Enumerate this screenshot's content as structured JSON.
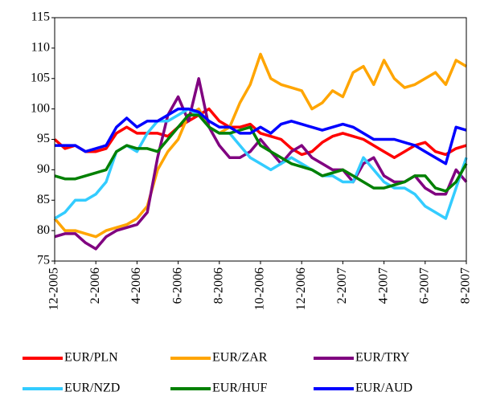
{
  "chart_data": {
    "type": "line",
    "categories": [
      "12-2005",
      null,
      null,
      null,
      "2-2006",
      null,
      null,
      null,
      "4-2006",
      null,
      null,
      null,
      "6-2006",
      null,
      null,
      null,
      "8-2006",
      null,
      null,
      null,
      "10-2006",
      null,
      null,
      null,
      "12-2006",
      null,
      null,
      null,
      "2-2007",
      null,
      null,
      null,
      "4-2007",
      null,
      null,
      null,
      "6-2007",
      null,
      null,
      null,
      "8-2007"
    ],
    "series": [
      {
        "name": "EUR/PLN",
        "color": "#ff0000",
        "values": [
          95,
          93.5,
          94,
          93,
          93,
          93.5,
          96,
          97,
          96,
          96,
          96,
          95.5,
          97,
          98,
          99,
          100,
          98,
          97,
          97,
          97.5,
          96,
          95.5,
          95,
          93.5,
          92.5,
          93,
          94.5,
          95.5,
          96,
          95.5,
          95,
          94,
          93,
          92,
          93,
          94,
          94.5,
          93,
          92.5,
          93.5,
          94
        ]
      },
      {
        "name": "EUR/ZAR",
        "color": "#ffa500",
        "values": [
          82,
          80,
          80,
          79.5,
          79,
          80,
          80.5,
          81,
          82,
          84,
          90,
          93,
          95,
          99,
          100,
          97,
          96,
          97,
          101,
          104,
          109,
          105,
          104,
          103.5,
          103,
          100,
          101,
          103,
          102,
          106,
          107,
          104,
          108,
          105,
          103.5,
          104,
          105,
          106,
          104,
          108,
          107
        ]
      },
      {
        "name": "EUR/TRY",
        "color": "#800080",
        "values": [
          79,
          79.5,
          79.5,
          78,
          77,
          79,
          80,
          80.5,
          81,
          83,
          92,
          99,
          102,
          98,
          105,
          97,
          94,
          92,
          92,
          93,
          95,
          93,
          91,
          93,
          94,
          92,
          91,
          90,
          90,
          88,
          91,
          92,
          89,
          88,
          88,
          89,
          87,
          86,
          86,
          90,
          88
        ]
      },
      {
        "name": "EUR/NZD",
        "color": "#33ccff",
        "values": [
          82,
          83,
          85,
          85,
          86,
          88,
          93,
          94,
          93,
          96,
          98,
          98,
          99,
          100,
          99,
          97,
          96,
          96,
          94,
          92,
          91,
          90,
          91,
          92,
          91,
          90,
          89,
          89,
          88,
          88,
          92,
          90,
          88,
          87,
          87,
          86,
          84,
          83,
          82,
          87,
          92
        ]
      },
      {
        "name": "EUR/HUF",
        "color": "#008000",
        "values": [
          89,
          88.5,
          88.5,
          89,
          89.5,
          90,
          93,
          94,
          93.5,
          93.5,
          93,
          95,
          97,
          99,
          99,
          97,
          96,
          96,
          96.5,
          97,
          94,
          93,
          92,
          91,
          90.5,
          90,
          89,
          89.5,
          90,
          89,
          88,
          87,
          87,
          87.5,
          88,
          89,
          89,
          87,
          86.5,
          88,
          91
        ]
      },
      {
        "name": "EUR/AUD",
        "color": "#0000ff",
        "values": [
          94,
          94,
          94,
          93,
          93.5,
          94,
          97,
          98.5,
          97,
          98,
          98,
          99,
          100,
          100,
          99.5,
          98,
          97,
          97,
          96,
          96,
          97,
          96,
          97.5,
          98,
          97.5,
          97,
          96.5,
          97,
          97.5,
          97,
          96,
          95,
          95,
          95,
          94.5,
          94,
          93,
          92,
          91,
          97,
          96.5
        ]
      }
    ],
    "ylim": [
      75,
      115
    ],
    "yticks": [
      75,
      80,
      85,
      90,
      95,
      100,
      105,
      110,
      115
    ],
    "grid": false,
    "legend": "bottom"
  }
}
